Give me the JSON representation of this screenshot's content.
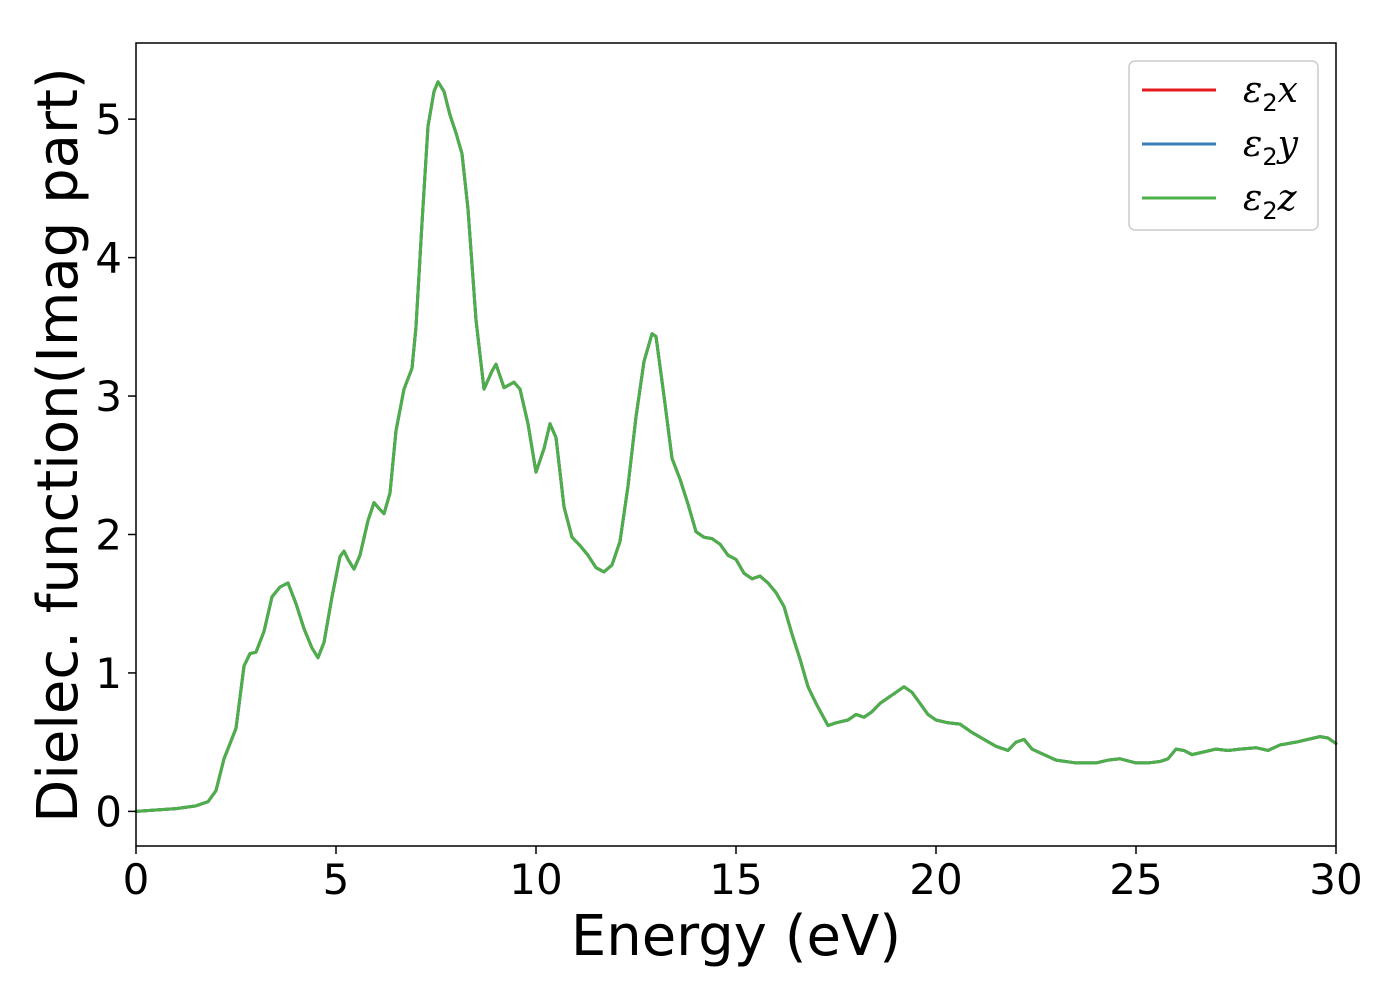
{
  "chart_data": {
    "type": "line",
    "xlabel": "Energy (eV)",
    "ylabel": "Dielec. function(Imag part)",
    "xlim": [
      0,
      30
    ],
    "ylim": [
      -0.25,
      5.55
    ],
    "xticks": [
      0,
      5,
      10,
      15,
      20,
      25,
      30
    ],
    "yticks": [
      0,
      1,
      2,
      3,
      4,
      5
    ],
    "grid": false,
    "legend": "top-right",
    "series": [
      {
        "name": "ε2x",
        "symbol": "ε",
        "sub": "2",
        "axis": "x",
        "color": "#e41a1c"
      },
      {
        "name": "ε2y",
        "symbol": "ε",
        "sub": "2",
        "axis": "y",
        "color": "#377eb8"
      },
      {
        "name": "ε2z",
        "symbol": "ε",
        "sub": "2",
        "axis": "z",
        "color": "#4daf4a"
      }
    ],
    "x": [
      0,
      0.5,
      1.0,
      1.5,
      1.8,
      2.0,
      2.2,
      2.5,
      2.7,
      2.85,
      3.0,
      3.2,
      3.4,
      3.6,
      3.8,
      4.0,
      4.2,
      4.4,
      4.55,
      4.7,
      4.9,
      5.1,
      5.2,
      5.3,
      5.45,
      5.6,
      5.8,
      5.95,
      6.1,
      6.2,
      6.35,
      6.5,
      6.7,
      6.9,
      7.0,
      7.15,
      7.3,
      7.45,
      7.55,
      7.7,
      7.85,
      8.0,
      8.15,
      8.3,
      8.5,
      8.7,
      8.9,
      9.0,
      9.2,
      9.45,
      9.6,
      9.8,
      10.0,
      10.2,
      10.35,
      10.5,
      10.7,
      10.9,
      11.1,
      11.3,
      11.5,
      11.7,
      11.9,
      12.1,
      12.3,
      12.5,
      12.7,
      12.9,
      13.0,
      13.2,
      13.4,
      13.6,
      13.8,
      14.0,
      14.2,
      14.4,
      14.6,
      14.8,
      15.0,
      15.2,
      15.4,
      15.6,
      15.8,
      16.0,
      16.2,
      16.4,
      16.6,
      16.8,
      17.0,
      17.3,
      17.5,
      17.8,
      18.0,
      18.2,
      18.4,
      18.6,
      18.8,
      19.0,
      19.2,
      19.4,
      19.6,
      19.8,
      20.0,
      20.3,
      20.6,
      20.9,
      21.2,
      21.5,
      21.8,
      22.0,
      22.2,
      22.4,
      22.7,
      23.0,
      23.5,
      24.0,
      24.3,
      24.6,
      25.0,
      25.3,
      25.6,
      25.8,
      26.0,
      26.2,
      26.4,
      26.7,
      27.0,
      27.3,
      27.6,
      28.0,
      28.3,
      28.6,
      29.0,
      29.3,
      29.6,
      29.8,
      30.0
    ],
    "values": [
      0.0,
      0.01,
      0.02,
      0.04,
      0.07,
      0.15,
      0.38,
      0.6,
      1.05,
      1.14,
      1.15,
      1.3,
      1.55,
      1.62,
      1.65,
      1.5,
      1.32,
      1.18,
      1.11,
      1.22,
      1.55,
      1.84,
      1.88,
      1.82,
      1.75,
      1.85,
      2.1,
      2.23,
      2.18,
      2.15,
      2.3,
      2.75,
      3.05,
      3.2,
      3.5,
      4.25,
      4.95,
      5.2,
      5.27,
      5.2,
      5.03,
      4.9,
      4.75,
      4.35,
      3.55,
      3.05,
      3.18,
      3.23,
      3.06,
      3.1,
      3.05,
      2.8,
      2.45,
      2.62,
      2.8,
      2.7,
      2.2,
      1.98,
      1.92,
      1.85,
      1.76,
      1.73,
      1.78,
      1.95,
      2.35,
      2.85,
      3.25,
      3.45,
      3.43,
      3.0,
      2.55,
      2.4,
      2.22,
      2.02,
      1.98,
      1.97,
      1.93,
      1.85,
      1.82,
      1.72,
      1.68,
      1.7,
      1.65,
      1.58,
      1.48,
      1.28,
      1.1,
      0.9,
      0.78,
      0.62,
      0.64,
      0.66,
      0.7,
      0.68,
      0.72,
      0.78,
      0.82,
      0.86,
      0.9,
      0.86,
      0.78,
      0.7,
      0.66,
      0.64,
      0.63,
      0.57,
      0.52,
      0.47,
      0.44,
      0.5,
      0.52,
      0.45,
      0.41,
      0.37,
      0.35,
      0.35,
      0.37,
      0.38,
      0.35,
      0.35,
      0.36,
      0.38,
      0.45,
      0.44,
      0.41,
      0.43,
      0.45,
      0.44,
      0.45,
      0.46,
      0.44,
      0.48,
      0.5,
      0.52,
      0.54,
      0.53,
      0.49
    ]
  }
}
